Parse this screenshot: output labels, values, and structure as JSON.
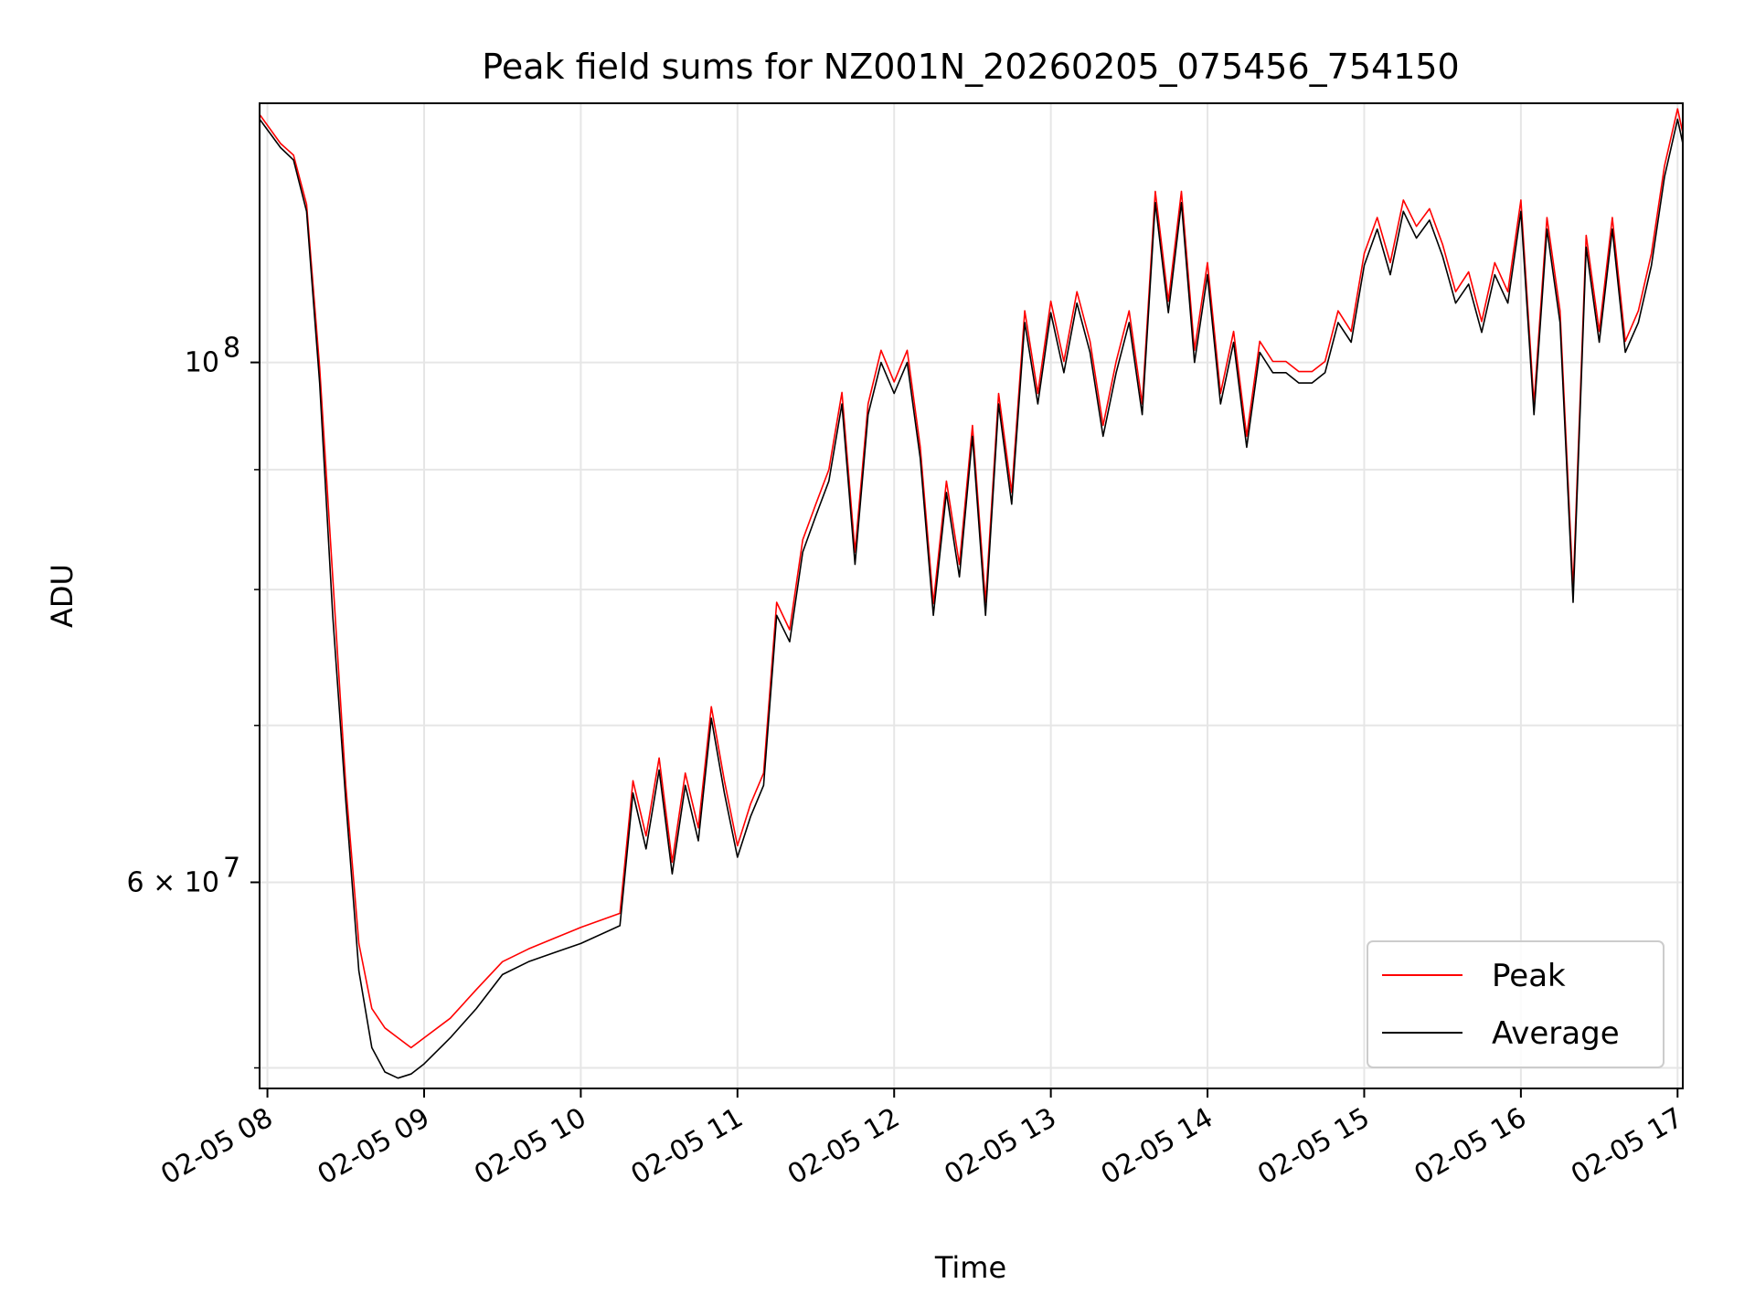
{
  "chart_data": {
    "type": "line",
    "title": "Peak field sums for NZ001N_20260205_075456_754150",
    "xlabel": "Time",
    "ylabel": "ADU",
    "y_scale": "log",
    "ylim": [
      49000000,
      129000000
    ],
    "xlim": [
      "02-05 07:57",
      "02-05 17:02"
    ],
    "grid": true,
    "legend_position": "lower right",
    "x_ticks": [
      "02-05 08",
      "02-05 09",
      "02-05 10",
      "02-05 11",
      "02-05 12",
      "02-05 13",
      "02-05 14",
      "02-05 15",
      "02-05 16",
      "02-05 17"
    ],
    "y_ticks": [
      {
        "value": 100000000,
        "label_base": "10",
        "label_exp": "8"
      },
      {
        "value": 60000000,
        "label_base": "6 × 10",
        "label_exp": "7"
      }
    ],
    "y_minor_ticks": [
      50000000,
      70000000,
      80000000,
      90000000
    ],
    "series": [
      {
        "name": "Peak",
        "color": "#ff0000"
      },
      {
        "name": "Average",
        "color": "#000000"
      }
    ],
    "x": [
      "07:57",
      "08:05",
      "08:10",
      "08:15",
      "08:20",
      "08:25",
      "08:30",
      "08:35",
      "08:40",
      "08:45",
      "08:50",
      "08:55",
      "09:00",
      "09:10",
      "09:20",
      "09:30",
      "09:40",
      "09:50",
      "10:00",
      "10:15",
      "10:20",
      "10:25",
      "10:30",
      "10:35",
      "10:40",
      "10:45",
      "10:50",
      "10:55",
      "11:00",
      "11:05",
      "11:10",
      "11:15",
      "11:20",
      "11:25",
      "11:30",
      "11:35",
      "11:40",
      "11:45",
      "11:50",
      "11:55",
      "12:00",
      "12:05",
      "12:10",
      "12:15",
      "12:20",
      "12:25",
      "12:30",
      "12:35",
      "12:40",
      "12:45",
      "12:50",
      "12:55",
      "13:00",
      "13:05",
      "13:10",
      "13:15",
      "13:20",
      "13:25",
      "13:30",
      "13:35",
      "13:40",
      "13:45",
      "13:50",
      "13:55",
      "14:00",
      "14:05",
      "14:10",
      "14:15",
      "14:20",
      "14:25",
      "14:30",
      "14:35",
      "14:40",
      "14:45",
      "14:50",
      "14:55",
      "15:00",
      "15:05",
      "15:10",
      "15:15",
      "15:20",
      "15:25",
      "15:30",
      "15:35",
      "15:40",
      "15:45",
      "15:50",
      "15:55",
      "16:00",
      "16:05",
      "16:10",
      "16:15",
      "16:20",
      "16:25",
      "16:30",
      "16:35",
      "16:40",
      "16:45",
      "16:50",
      "16:55",
      "17:00",
      "17:02"
    ],
    "avg": [
      127000000,
      123500000,
      122000000,
      116000000,
      98000000,
      78000000,
      65000000,
      55000000,
      51000000,
      49800000,
      49500000,
      49700000,
      50200000,
      51500000,
      53000000,
      54800000,
      55500000,
      56000000,
      56500000,
      57500000,
      65500000,
      62000000,
      67000000,
      60500000,
      66000000,
      62500000,
      70500000,
      65500000,
      61500000,
      64000000,
      66000000,
      78000000,
      76000000,
      83000000,
      86000000,
      89000000,
      96000000,
      82000000,
      95000000,
      100000000,
      97000000,
      100000000,
      91000000,
      78000000,
      88000000,
      81000000,
      93000000,
      78000000,
      96000000,
      87000000,
      104000000,
      96000000,
      105000000,
      99000000,
      106000000,
      101000000,
      93000000,
      99000000,
      104000000,
      95000000,
      117000000,
      105000000,
      117000000,
      100000000,
      109000000,
      96000000,
      102000000,
      92000000,
      101000000,
      99000000,
      99000000,
      98000000,
      98000000,
      99000000,
      104000000,
      102000000,
      110000000,
      114000000,
      109000000,
      116000000,
      113000000,
      115000000,
      111000000,
      106000000,
      108000000,
      103000000,
      109000000,
      106000000,
      116000000,
      95000000,
      114000000,
      104000000,
      79000000,
      112000000,
      102000000,
      114000000,
      101000000,
      104000000,
      110000000,
      120000000,
      127000000,
      124000000
    ],
    "peak": [
      127600000,
      124000000,
      122600000,
      116800000,
      99500000,
      81000000,
      66000000,
      56500000,
      53000000,
      52000000,
      51500000,
      51000000,
      51500000,
      52500000,
      54000000,
      55500000,
      56200000,
      56800000,
      57400000,
      58200000,
      66300000,
      62800000,
      67800000,
      61200000,
      66800000,
      63300000,
      71300000,
      66300000,
      62200000,
      64800000,
      66800000,
      79000000,
      76900000,
      84000000,
      87000000,
      90000000,
      97100000,
      83000000,
      96000000,
      101200000,
      98100000,
      101200000,
      92000000,
      78900000,
      89000000,
      82000000,
      94000000,
      79000000,
      97000000,
      88000000,
      105200000,
      97000000,
      106200000,
      100100000,
      107200000,
      102100000,
      94000000,
      100100000,
      105200000,
      96000000,
      118300000,
      106200000,
      118300000,
      101200000,
      110300000,
      97000000,
      103100000,
      93000000,
      102100000,
      100100000,
      100100000,
      99100000,
      99100000,
      100100000,
      105200000,
      103100000,
      111300000,
      115300000,
      110300000,
      117300000,
      114300000,
      116300000,
      112300000,
      107200000,
      109300000,
      104100000,
      110300000,
      107200000,
      117300000,
      96000000,
      115300000,
      105200000,
      80000000,
      113300000,
      103100000,
      115300000,
      102100000,
      105200000,
      111300000,
      121300000,
      128300000,
      125300000
    ]
  }
}
